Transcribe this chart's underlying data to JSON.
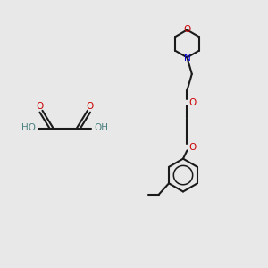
{
  "bg_color": "#e8e8e8",
  "bond_color": "#1a1a1a",
  "O_color": "#cc0000",
  "N_color": "#0000cc",
  "H_color": "#4a8080",
  "line_width": 1.5,
  "fig_width": 3.0,
  "fig_height": 3.0,
  "xlim": [
    0,
    10
  ],
  "ylim": [
    0,
    10
  ]
}
